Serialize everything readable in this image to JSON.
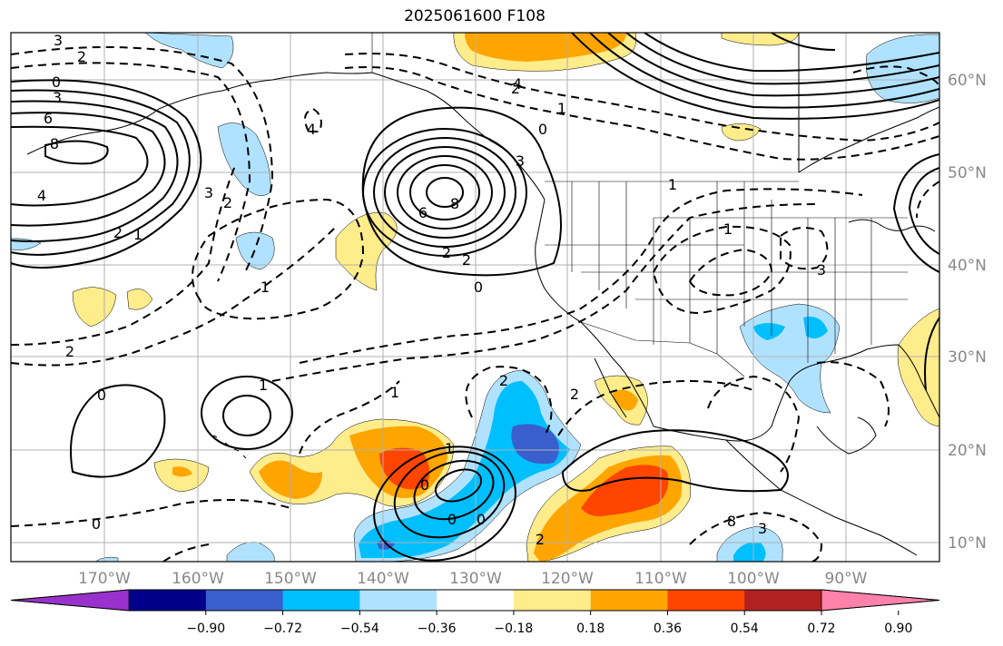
{
  "title": "2025061600 F108",
  "chart_data": {
    "type": "map",
    "lon_ticks": [
      "170°W",
      "160°W",
      "150°W",
      "140°W",
      "130°W",
      "120°W",
      "110°W",
      "100°W",
      "90°W"
    ],
    "lat_ticks": [
      "60°N",
      "50°N",
      "40°N",
      "30°N",
      "20°N",
      "10°N"
    ],
    "grid": true,
    "colorbar": {
      "orientation": "horizontal",
      "ticks": [
        "−0.90",
        "−0.72",
        "−0.54",
        "−0.36",
        "−0.18",
        "0.18",
        "0.36",
        "0.54",
        "0.72",
        "0.90"
      ],
      "colors": [
        "#9932cc",
        "#00008b",
        "#3a5fcd",
        "#00bfff",
        "#b0e2ff",
        "#ffffff",
        "#ffec8b",
        "#ffa500",
        "#ff4500",
        "#b22222",
        "#ff82ab"
      ],
      "extend": "both"
    },
    "contour_labels": [
      "3",
      "2",
      "0",
      "3",
      "6",
      "8",
      "4",
      "2",
      "1",
      "4",
      "6",
      "8",
      "2",
      "2",
      "1",
      "0",
      "0",
      "1",
      "2",
      "3",
      "4",
      "3",
      "2",
      "1",
      "1",
      "3",
      "2",
      "0",
      "1",
      "1",
      "2",
      "2",
      "1",
      "0",
      "0",
      "0",
      "8",
      "3",
      "2",
      "0"
    ],
    "colors": {
      "positive_contour": "#000000",
      "negative_contour": "#000000",
      "land_outline": "#000000",
      "grid": "#b0b0b0"
    }
  }
}
